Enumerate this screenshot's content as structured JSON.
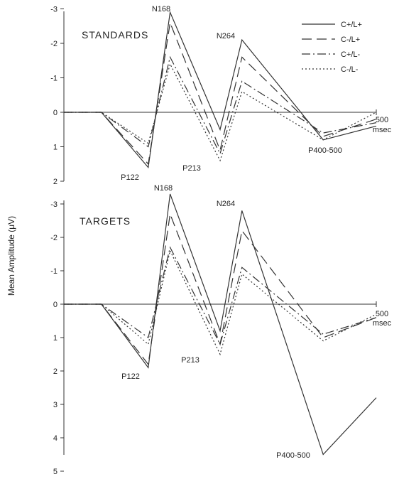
{
  "chart_data": [
    {
      "type": "line",
      "title": "STANDARDS",
      "x": [
        0,
        60,
        135,
        170,
        250,
        285,
        415,
        500
      ],
      "x_end_label": "500",
      "x_unit": "msec",
      "y_ticks": [
        "-3",
        "-2",
        "-1",
        "0",
        "1",
        "2"
      ],
      "ylim": [
        2,
        -3
      ],
      "ylabel": "Mean Amplitude (μV)",
      "series": [
        {
          "name": "C+/L+",
          "dash": "",
          "values": [
            0,
            0,
            1.6,
            -2.9,
            0.5,
            -2.1,
            0.8,
            0.4
          ]
        },
        {
          "name": "C-/L+",
          "dash": "14,7",
          "values": [
            0,
            0,
            1.5,
            -2.6,
            1.1,
            -1.6,
            0.7,
            0.2
          ]
        },
        {
          "name": "C+/L-",
          "dash": "12,4,2,4",
          "values": [
            0,
            0,
            1.0,
            -1.6,
            1.2,
            -0.9,
            0.6,
            0.3
          ]
        },
        {
          "name": "C-/L-",
          "dash": "2,3",
          "values": [
            0,
            0,
            0.9,
            -1.4,
            1.4,
            -0.6,
            0.8,
            0.0
          ]
        }
      ],
      "annotations": [
        "N168",
        "N264",
        "P122",
        "P213",
        "P400-500"
      ]
    },
    {
      "type": "line",
      "title": "TARGETS",
      "x": [
        0,
        60,
        135,
        170,
        250,
        285,
        415,
        500
      ],
      "x_end_label": "500",
      "x_unit": "msec",
      "y_ticks": [
        "-3",
        "-2",
        "-1",
        "0",
        "1",
        "2",
        "3",
        "4",
        "5"
      ],
      "ylim": [
        5,
        -3
      ],
      "series": [
        {
          "name": "C+/L+",
          "dash": "",
          "values": [
            0,
            0,
            1.9,
            -3.3,
            0.8,
            -2.8,
            4.5,
            2.8
          ]
        },
        {
          "name": "C-/L+",
          "dash": "14,7",
          "values": [
            0,
            0,
            1.8,
            -2.7,
            1.2,
            -2.2,
            1.0,
            0.4
          ]
        },
        {
          "name": "C+/L-",
          "dash": "12,4,2,4",
          "values": [
            0,
            0,
            1.0,
            -1.7,
            1.2,
            -1.1,
            0.9,
            0.4
          ]
        },
        {
          "name": "C-/L-",
          "dash": "2,3",
          "values": [
            0,
            0,
            1.2,
            -1.6,
            1.5,
            -0.9,
            1.1,
            0.3
          ]
        }
      ],
      "annotations": [
        "N168",
        "N264",
        "P122",
        "P213",
        "P400-500"
      ]
    }
  ]
}
